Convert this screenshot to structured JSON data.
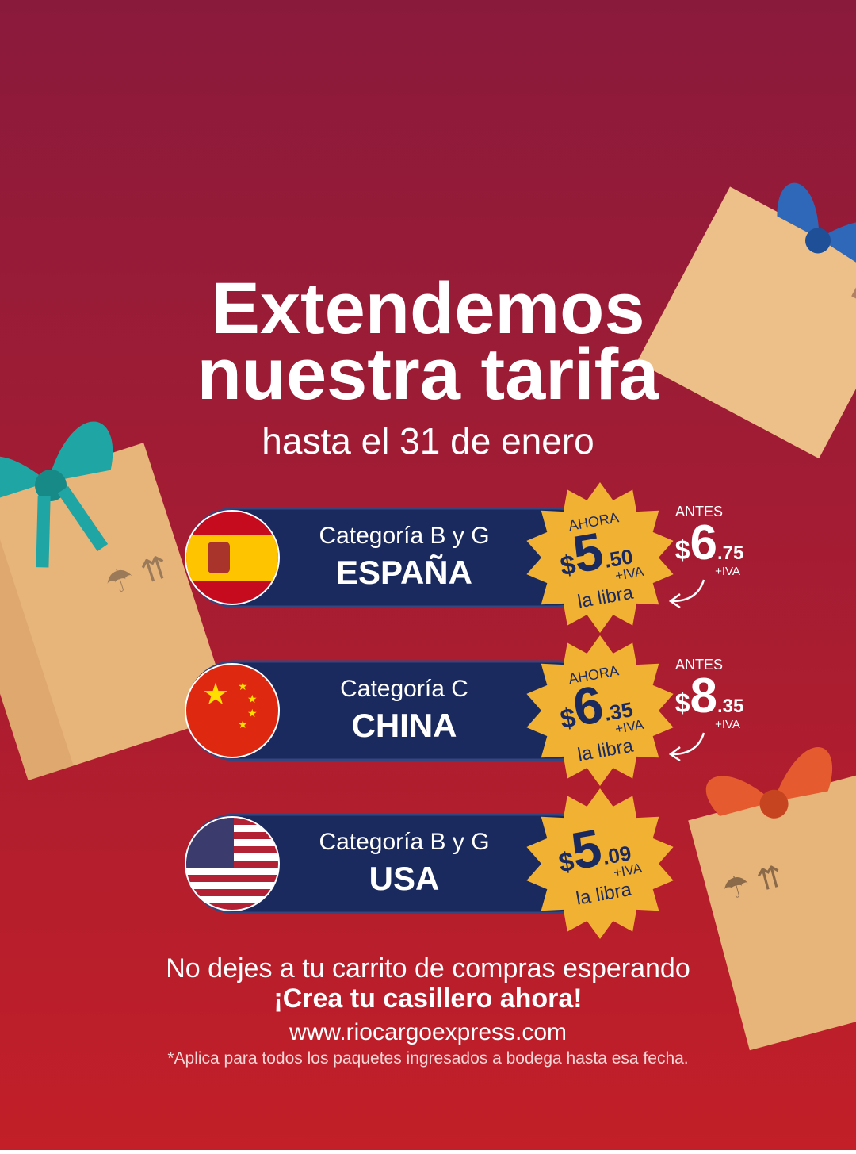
{
  "headline": {
    "line1": "Extendemos",
    "line2": "nuestra tarifa",
    "subtitle": "hasta el 31 de enero"
  },
  "rates": [
    {
      "category": "Categoría B y G",
      "country": "ESPAÑA",
      "now_label": "AHORA",
      "now_price": {
        "currency": "$",
        "whole": "5",
        "cents": ".50"
      },
      "tax": "+IVA",
      "unit": "la libra",
      "before_label": "ANTES",
      "before_price": {
        "currency": "$",
        "whole": "6",
        "cents": ".75"
      },
      "before_tax": "+IVA"
    },
    {
      "category": "Categoría C",
      "country": "CHINA",
      "now_label": "AHORA",
      "now_price": {
        "currency": "$",
        "whole": "6",
        "cents": ".35"
      },
      "tax": "+IVA",
      "unit": "la libra",
      "before_label": "ANTES",
      "before_price": {
        "currency": "$",
        "whole": "8",
        "cents": ".35"
      },
      "before_tax": "+IVA"
    },
    {
      "category": "Categoría B y G",
      "country": "USA",
      "now_price": {
        "currency": "$",
        "whole": "5",
        "cents": ".09"
      },
      "tax": "+IVA",
      "unit": "la libra"
    }
  ],
  "footer": {
    "line1": "No dejes a tu carrito de compras esperando",
    "cta": "¡Crea tu casillero ahora!",
    "url": "www.riocargoexpress.com",
    "disclaimer": "*Aplica para todos los paquetes ingresados a bodega hasta esa fecha."
  }
}
